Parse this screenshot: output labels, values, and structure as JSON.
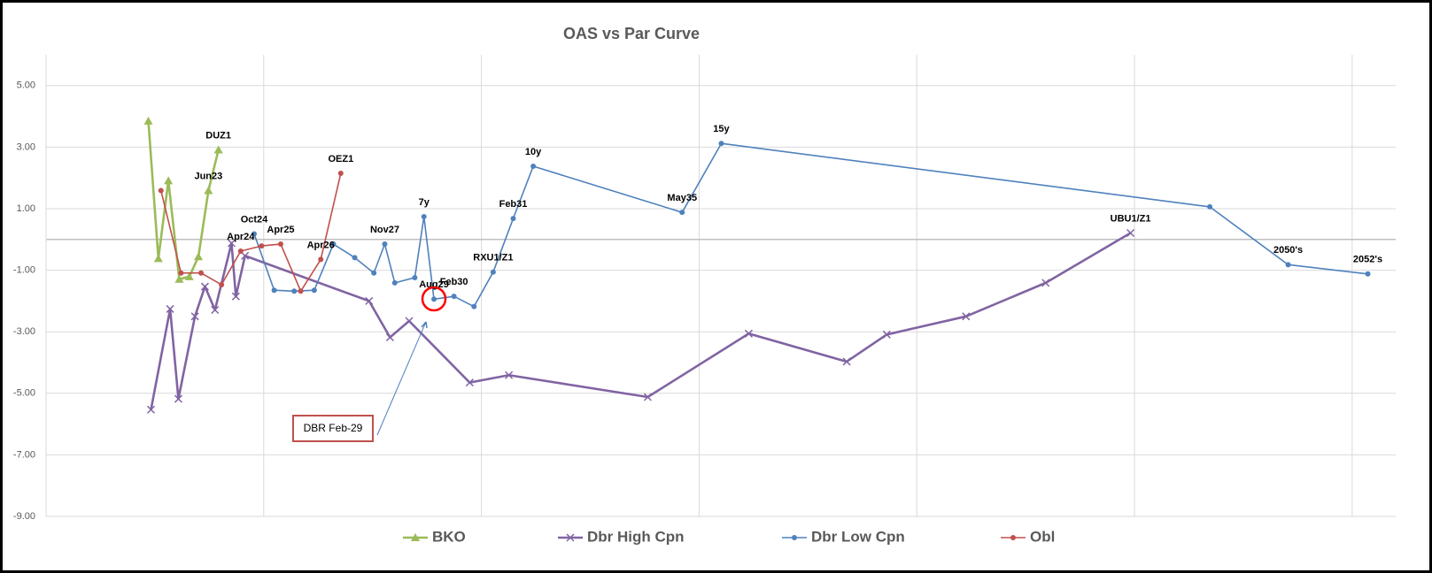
{
  "chart_data": {
    "type": "line",
    "title": "OAS vs Par Curve",
    "xlim": [
      0,
      31
    ],
    "xticks": [
      0,
      5,
      10,
      15,
      20,
      25,
      30
    ],
    "ylim": [
      -9,
      6
    ],
    "yticks": [
      {
        "value": -9,
        "label": "-9.00"
      },
      {
        "value": -7,
        "label": "-7.00"
      },
      {
        "value": -5,
        "label": "-5.00"
      },
      {
        "value": -3,
        "label": "-3.00"
      },
      {
        "value": -1,
        "label": "-1.00"
      },
      {
        "value": 1,
        "label": "1.00"
      },
      {
        "value": 3,
        "label": "3.00"
      },
      {
        "value": 5,
        "label": "5.00"
      }
    ],
    "grid": true,
    "legend": "bottom",
    "annotation": "DBR Feb-29",
    "series": [
      {
        "name": "BKO",
        "color": "#9bbb59",
        "marker": "triangle",
        "x": [
          2.35,
          2.58,
          2.81,
          3.06,
          3.29,
          3.5,
          3.73,
          3.96
        ],
        "values": [
          3.85,
          -0.62,
          1.91,
          -1.29,
          -1.21,
          -0.56,
          1.59,
          2.91
        ],
        "point_labels": [
          null,
          null,
          null,
          null,
          null,
          null,
          "Jun23",
          "DUZ1"
        ]
      },
      {
        "name": "Dbr High Cpn",
        "color": "#8064a2",
        "marker": "x",
        "x": [
          2.41,
          2.85,
          3.04,
          3.42,
          3.65,
          3.88,
          4.26,
          4.36,
          4.57,
          7.42,
          7.9,
          8.34,
          9.73,
          10.63,
          13.82,
          16.14,
          18.39,
          19.31,
          21.13,
          22.96,
          24.91
        ],
        "values": [
          -5.53,
          -2.26,
          -5.18,
          -2.5,
          -1.53,
          -2.29,
          -0.12,
          -1.85,
          -0.53,
          -2.0,
          -3.18,
          -2.65,
          -4.65,
          -4.41,
          -5.12,
          -3.06,
          -3.97,
          -3.09,
          -2.5,
          -1.41,
          0.21
        ],
        "point_labels": [
          null,
          null,
          null,
          null,
          null,
          null,
          null,
          null,
          null,
          null,
          null,
          null,
          null,
          null,
          null,
          null,
          null,
          null,
          null,
          null,
          "UBU1/Z1"
        ]
      },
      {
        "name": "Dbr Low Cpn",
        "color": "#4f81bd",
        "marker": "circle",
        "x": [
          4.78,
          5.24,
          5.7,
          6.16,
          6.6,
          7.09,
          7.53,
          7.78,
          8.01,
          8.47,
          8.68,
          8.91,
          9.37,
          9.83,
          10.27,
          10.73,
          11.19,
          14.61,
          15.51,
          26.73,
          28.53,
          30.36
        ],
        "values": [
          0.18,
          -1.65,
          -1.68,
          -1.65,
          -0.15,
          -0.59,
          -1.09,
          -0.15,
          -1.41,
          -1.24,
          0.74,
          -1.94,
          -1.85,
          -2.18,
          -1.06,
          0.68,
          2.38,
          0.88,
          3.12,
          1.06,
          -0.82,
          -1.12
        ],
        "point_labels": [
          "Oct24",
          null,
          null,
          null,
          null,
          null,
          null,
          "Nov27",
          null,
          null,
          "7y",
          "Aug29",
          "Feb30",
          null,
          "RXU1/Z1",
          "Feb31",
          "10y",
          "May35",
          "15y",
          null,
          "2050's",
          "2052's"
        ]
      },
      {
        "name": "Obl",
        "color": "#c0504d",
        "marker": "circle",
        "x": [
          2.64,
          3.1,
          3.56,
          4.03,
          4.47,
          4.95,
          5.39,
          5.85,
          6.31,
          6.77
        ],
        "values": [
          1.59,
          -1.09,
          -1.09,
          -1.47,
          -0.38,
          -0.21,
          -0.15,
          -1.68,
          -0.65,
          2.15
        ],
        "point_labels": [
          null,
          null,
          null,
          null,
          "Apr24",
          null,
          "Apr25",
          null,
          "Apr26",
          "OEZ1"
        ]
      }
    ]
  }
}
